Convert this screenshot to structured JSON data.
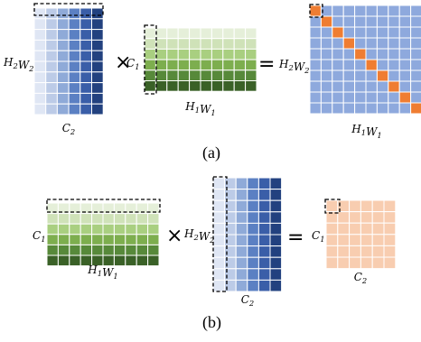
{
  "panel_a": {
    "caption": "(a)",
    "left_matrix": {
      "row_label": "H2W2",
      "col_label": "C2"
    },
    "middle_matrix": {
      "row_label": "C1",
      "col_label": "H1W1"
    },
    "result_matrix": {
      "row_label": "H2W2",
      "col_label": "H1W1"
    },
    "operator_times": "×",
    "operator_equals": "="
  },
  "panel_b": {
    "caption": "(b)",
    "left_matrix": {
      "row_label": "C1",
      "col_label": "H1W1"
    },
    "middle_matrix": {
      "row_label": "H2W2",
      "col_label": "C2"
    },
    "result_matrix": {
      "row_label": "C1",
      "col_label": "C2"
    },
    "operator_times": "×",
    "operator_equals": "="
  },
  "colors": {
    "blue_gradient": [
      "#dfe6f4",
      "#bccbe7",
      "#8faad8",
      "#5b80c3",
      "#3a5ea8",
      "#22417f"
    ],
    "green_gradient": [
      "#e5efd9",
      "#cfe2b8",
      "#a9cf80",
      "#7dae4e",
      "#57893a",
      "#3a6127"
    ],
    "result_a_fill": "#8ea9dd",
    "result_a_highlight": "#ef7d32",
    "result_b_fill": "#f8cdb0",
    "grid_line": "#ffffff",
    "dashed_box": "#000000"
  }
}
